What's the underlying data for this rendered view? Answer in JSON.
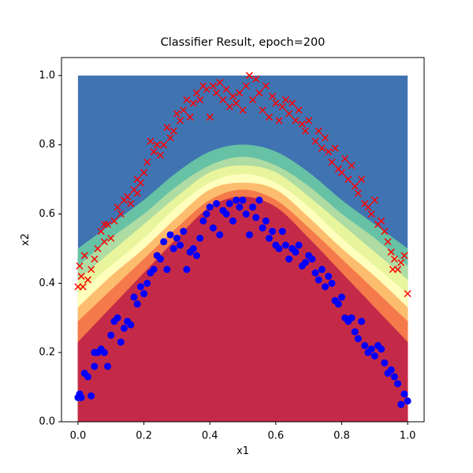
{
  "chart_data": {
    "type": "scatter",
    "title": "Classifier Result, epoch=200",
    "x_label": "x1",
    "y_label": "x2",
    "xlim": [
      -0.05,
      1.05
    ],
    "ylim": [
      0,
      1.052
    ],
    "xticks": [
      {
        "value": 0,
        "label": "0.0"
      },
      0.2,
      0.4,
      0.6,
      0.8,
      {
        "value": 1,
        "label": "1.0"
      }
    ],
    "yticks": [
      {
        "value": 0,
        "label": "0.0"
      },
      0.2,
      0.4,
      0.6,
      0.8,
      {
        "value": 1,
        "label": "1.0"
      }
    ],
    "contour": {
      "yrange": [
        0,
        1
      ],
      "x": [
        0,
        0.1,
        0.2,
        0.3,
        0.4,
        0.5,
        0.6,
        0.7,
        0.8,
        0.9,
        1
      ],
      "colors": [
        "#4073b1",
        "#67c1a5",
        "#aedca3",
        "#e8f59d",
        "#fefebd",
        "#fdbd6e",
        "#f57a4b",
        "#c42a47"
      ],
      "boundaries": [
        [
          0.5,
          0.57,
          0.64,
          0.72,
          0.78,
          0.8,
          0.78,
          0.72,
          0.64,
          0.57,
          0.5
        ],
        [
          0.45,
          0.53,
          0.6,
          0.68,
          0.74,
          0.765,
          0.74,
          0.68,
          0.6,
          0.53,
          0.45
        ],
        [
          0.41,
          0.49,
          0.57,
          0.65,
          0.72,
          0.74,
          0.72,
          0.65,
          0.57,
          0.49,
          0.41
        ],
        [
          0.37,
          0.45,
          0.53,
          0.62,
          0.69,
          0.715,
          0.69,
          0.62,
          0.53,
          0.45,
          0.37
        ],
        [
          0.33,
          0.42,
          0.5,
          0.59,
          0.67,
          0.69,
          0.67,
          0.59,
          0.5,
          0.42,
          0.33
        ],
        [
          0.29,
          0.38,
          0.47,
          0.56,
          0.64,
          0.67,
          0.64,
          0.56,
          0.47,
          0.38,
          0.29
        ],
        [
          0.23,
          0.33,
          0.43,
          0.53,
          0.62,
          0.65,
          0.62,
          0.53,
          0.43,
          0.33,
          0.23
        ]
      ]
    },
    "series": [
      {
        "marker": "x",
        "color": "#ff0000",
        "x": [
          0.0,
          0.005,
          0.01,
          0.015,
          0.03,
          0.02,
          0.05,
          0.04,
          0.06,
          0.07,
          0.08,
          0.09,
          0.08,
          0.1,
          0.11,
          0.12,
          0.13,
          0.14,
          0.15,
          0.16,
          0.17,
          0.18,
          0.18,
          0.19,
          0.2,
          0.21,
          0.22,
          0.23,
          0.24,
          0.25,
          0.26,
          0.27,
          0.28,
          0.29,
          0.3,
          0.31,
          0.32,
          0.33,
          0.34,
          0.35,
          0.36,
          0.37,
          0.38,
          0.39,
          0.4,
          0.41,
          0.42,
          0.43,
          0.44,
          0.45,
          0.46,
          0.47,
          0.48,
          0.49,
          0.5,
          0.51,
          0.52,
          0.53,
          0.54,
          0.55,
          0.56,
          0.57,
          0.58,
          0.59,
          0.6,
          0.61,
          0.62,
          0.63,
          0.64,
          0.65,
          0.66,
          0.67,
          0.68,
          0.69,
          0.7,
          0.72,
          0.73,
          0.74,
          0.75,
          0.76,
          0.77,
          0.78,
          0.79,
          0.8,
          0.81,
          0.82,
          0.83,
          0.84,
          0.85,
          0.86,
          0.87,
          0.88,
          0.89,
          0.9,
          0.91,
          0.92,
          0.93,
          0.94,
          0.95,
          0.96,
          0.97,
          0.98,
          0.99,
          1.0,
          0.955
        ],
        "values": [
          0.39,
          0.45,
          0.42,
          0.39,
          0.41,
          0.48,
          0.47,
          0.44,
          0.5,
          0.55,
          0.57,
          0.57,
          0.52,
          0.53,
          0.58,
          0.62,
          0.6,
          0.64,
          0.65,
          0.63,
          0.67,
          0.66,
          0.7,
          0.69,
          0.72,
          0.75,
          0.81,
          0.78,
          0.8,
          0.77,
          0.8,
          0.85,
          0.82,
          0.84,
          0.89,
          0.87,
          0.9,
          0.93,
          0.88,
          0.92,
          0.95,
          0.93,
          0.97,
          0.96,
          0.88,
          0.97,
          0.95,
          0.98,
          0.93,
          0.96,
          0.91,
          0.94,
          0.92,
          0.95,
          0.9,
          0.97,
          1.0,
          0.93,
          0.99,
          0.95,
          0.9,
          0.97,
          0.88,
          0.94,
          0.92,
          0.87,
          0.91,
          0.93,
          0.89,
          0.92,
          0.87,
          0.9,
          0.86,
          0.84,
          0.87,
          0.81,
          0.84,
          0.79,
          0.82,
          0.78,
          0.75,
          0.79,
          0.73,
          0.72,
          0.76,
          0.7,
          0.74,
          0.68,
          0.66,
          0.7,
          0.63,
          0.62,
          0.6,
          0.64,
          0.57,
          0.58,
          0.55,
          0.52,
          0.49,
          0.47,
          0.44,
          0.46,
          0.48,
          0.37,
          0.44
        ]
      },
      {
        "marker": "o",
        "color": "#0000ff",
        "x": [
          0.0,
          0.005,
          0.01,
          0.02,
          0.03,
          0.04,
          0.05,
          0.05,
          0.06,
          0.07,
          0.08,
          0.09,
          0.1,
          0.11,
          0.12,
          0.13,
          0.14,
          0.15,
          0.16,
          0.17,
          0.18,
          0.19,
          0.2,
          0.21,
          0.22,
          0.23,
          0.24,
          0.25,
          0.26,
          0.27,
          0.28,
          0.29,
          0.3,
          0.31,
          0.32,
          0.33,
          0.34,
          0.35,
          0.36,
          0.37,
          0.38,
          0.39,
          0.4,
          0.41,
          0.42,
          0.43,
          0.44,
          0.45,
          0.46,
          0.47,
          0.48,
          0.49,
          0.5,
          0.51,
          0.52,
          0.53,
          0.54,
          0.55,
          0.56,
          0.57,
          0.58,
          0.59,
          0.6,
          0.61,
          0.62,
          0.63,
          0.64,
          0.65,
          0.66,
          0.67,
          0.68,
          0.69,
          0.7,
          0.71,
          0.72,
          0.73,
          0.74,
          0.75,
          0.76,
          0.77,
          0.78,
          0.79,
          0.8,
          0.81,
          0.82,
          0.83,
          0.84,
          0.85,
          0.86,
          0.87,
          0.88,
          0.89,
          0.9,
          0.91,
          0.92,
          0.93,
          0.94,
          0.95,
          0.96,
          0.97,
          0.98,
          0.99,
          1.0
        ],
        "values": [
          0.07,
          0.08,
          0.07,
          0.14,
          0.13,
          0.075,
          0.16,
          0.2,
          0.2,
          0.21,
          0.2,
          0.16,
          0.25,
          0.29,
          0.3,
          0.23,
          0.27,
          0.29,
          0.28,
          0.36,
          0.34,
          0.39,
          0.37,
          0.4,
          0.43,
          0.44,
          0.48,
          0.47,
          0.52,
          0.44,
          0.54,
          0.5,
          0.53,
          0.51,
          0.55,
          0.44,
          0.49,
          0.5,
          0.48,
          0.53,
          0.58,
          0.6,
          0.62,
          0.56,
          0.63,
          0.54,
          0.61,
          0.6,
          0.63,
          0.58,
          0.64,
          0.62,
          0.64,
          0.6,
          0.54,
          0.62,
          0.59,
          0.64,
          0.56,
          0.58,
          0.53,
          0.55,
          0.51,
          0.5,
          0.55,
          0.51,
          0.47,
          0.5,
          0.49,
          0.51,
          0.45,
          0.46,
          0.48,
          0.47,
          0.43,
          0.41,
          0.44,
          0.39,
          0.42,
          0.4,
          0.35,
          0.34,
          0.36,
          0.3,
          0.29,
          0.3,
          0.26,
          0.24,
          0.29,
          0.22,
          0.2,
          0.21,
          0.19,
          0.22,
          0.21,
          0.17,
          0.14,
          0.15,
          0.13,
          0.11,
          0.05,
          0.08,
          0.06
        ]
      }
    ]
  }
}
